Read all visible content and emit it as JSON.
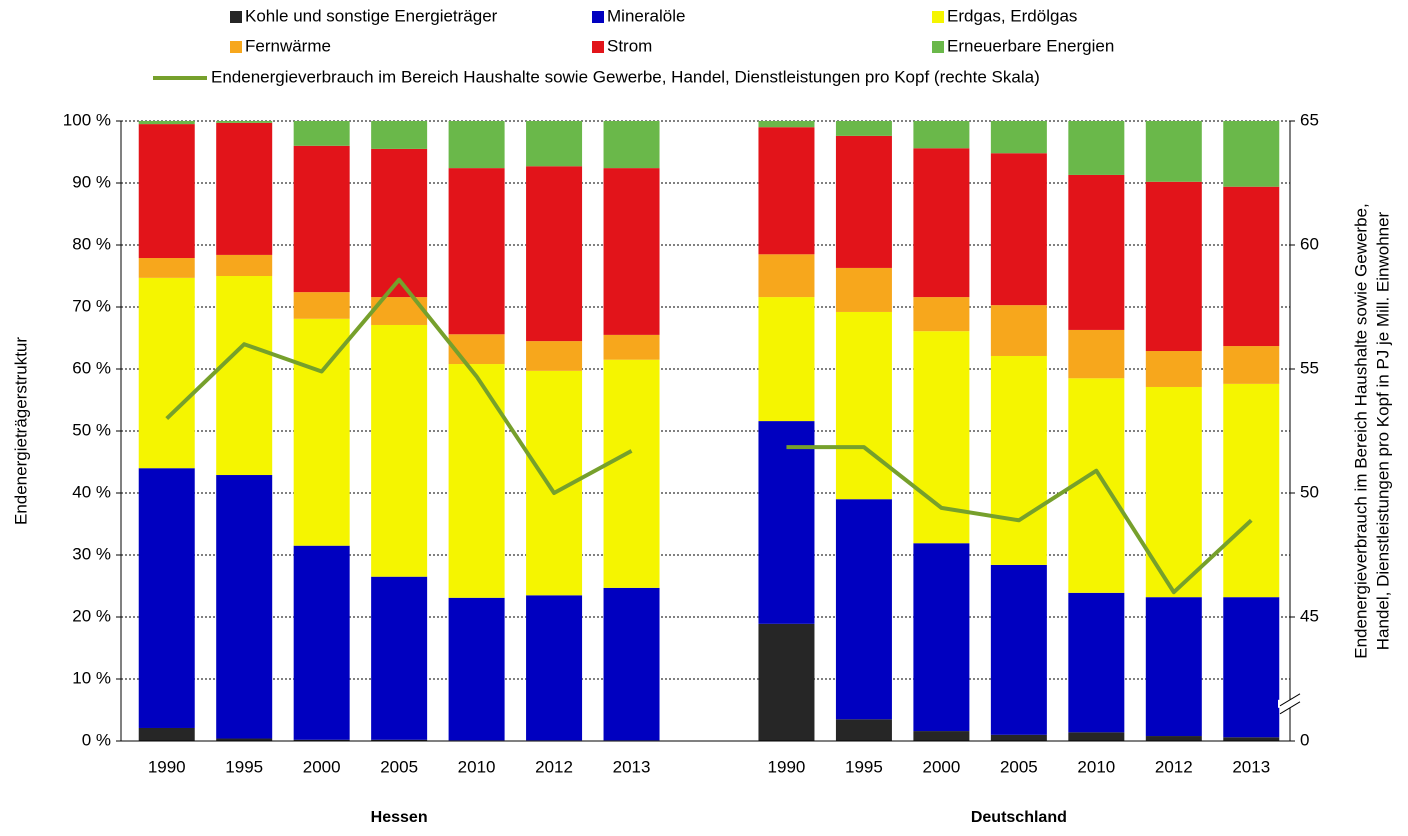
{
  "chart_data": {
    "type": "bar",
    "stacked": true,
    "categories": [
      "1990",
      "1995",
      "2000",
      "2005",
      "2010",
      "2012",
      "2013",
      null,
      "1990",
      "1995",
      "2000",
      "2005",
      "2010",
      "2012",
      "2013"
    ],
    "groups": [
      "Hessen",
      "Deutschland"
    ],
    "ylabel": "Endenergieträgerstruktur",
    "y2label": [
      "Endenergieverbrauch im Bereich Haushalte sowie Gewerbe,",
      "Handel, Dienstleistungen pro Kopf in PJ je Mill. Einwohner"
    ],
    "ylim": [
      0,
      100
    ],
    "yticks": [
      {
        "value": 0,
        "label": "0 %"
      },
      {
        "value": 10,
        "label": "10 %"
      },
      {
        "value": 20,
        "label": "20 %"
      },
      {
        "value": 30,
        "label": "30 %"
      },
      {
        "value": 40,
        "label": "40 %"
      },
      {
        "value": 50,
        "label": "50 %"
      },
      {
        "value": 60,
        "label": "60 %"
      },
      {
        "value": 70,
        "label": "70 %"
      },
      {
        "value": 80,
        "label": "80 %"
      },
      {
        "value": 90,
        "label": "90 %"
      },
      {
        "value": 100,
        "label": "100 %"
      }
    ],
    "y2lim": [
      0,
      65
    ],
    "y2break": [
      0,
      45
    ],
    "y2ticks": [
      0,
      45,
      50,
      55,
      60,
      65
    ],
    "grid": true,
    "series": [
      {
        "name": "Kohle und sonstige Energieträger",
        "color": "#262626",
        "values": [
          2.1,
          0.4,
          0.2,
          0.2,
          0.1,
          0.1,
          0.1,
          null,
          18.9,
          3.5,
          1.6,
          1.0,
          1.4,
          0.8,
          0.6
        ]
      },
      {
        "name": "Mineralöle",
        "color": "#0000c0",
        "values": [
          41.9,
          42.5,
          31.3,
          26.3,
          23.0,
          23.4,
          24.6,
          null,
          32.7,
          35.5,
          30.3,
          27.4,
          22.5,
          22.4,
          22.6
        ]
      },
      {
        "name": "Erdgas, Erdölgas",
        "color": "#f5f500",
        "values": [
          30.7,
          32.1,
          36.6,
          40.6,
          37.7,
          36.2,
          36.8,
          null,
          20.0,
          30.2,
          34.2,
          33.7,
          34.6,
          33.9,
          34.4
        ]
      },
      {
        "name": "Fernwärme",
        "color": "#f7a71c",
        "values": [
          3.2,
          3.4,
          4.3,
          4.5,
          4.8,
          4.8,
          4.0,
          null,
          6.9,
          7.1,
          5.5,
          8.2,
          7.8,
          5.8,
          6.1
        ]
      },
      {
        "name": "Strom",
        "color": "#e2141a",
        "values": [
          21.6,
          21.3,
          23.6,
          23.9,
          26.8,
          28.2,
          26.9,
          null,
          20.5,
          21.3,
          24.0,
          24.5,
          25.0,
          27.3,
          25.7
        ]
      },
      {
        "name": "Erneuerbare Energien",
        "color": "#6ab84a",
        "values": [
          0.5,
          0.3,
          4.0,
          4.5,
          7.6,
          7.3,
          7.6,
          null,
          1.0,
          2.4,
          4.4,
          5.2,
          8.7,
          9.8,
          10.6
        ]
      },
      {
        "name": "Endenergieverbrauch im Bereich Haushalte sowie Gewerbe, Handel, Dienstleistungen pro Kopf (rechte Skala)",
        "type": "line",
        "axis": "y2",
        "color": "#76a02c",
        "values": [
          53.0,
          56.0,
          54.9,
          58.6,
          54.7,
          50.0,
          51.7,
          null,
          51.85,
          51.85,
          49.4,
          48.9,
          50.9,
          46.0,
          48.9
        ]
      }
    ]
  }
}
